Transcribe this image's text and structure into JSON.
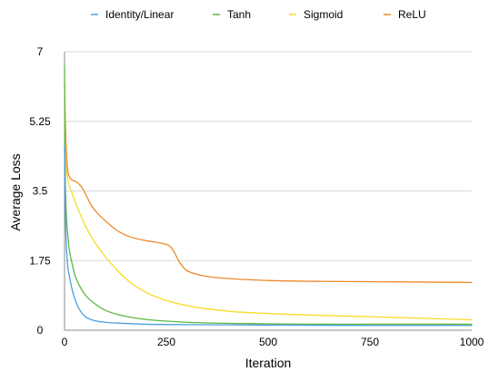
{
  "chart_data": {
    "type": "line",
    "title": "",
    "xlabel": "Iteration",
    "ylabel": "Average Loss",
    "xlim": [
      0,
      1000
    ],
    "ylim": [
      0,
      7
    ],
    "x_ticks": [
      0,
      250,
      500,
      750,
      1000
    ],
    "x_tick_labels": [
      "0",
      "250",
      "500",
      "750",
      "1000"
    ],
    "y_ticks": [
      0,
      1.75,
      3.5,
      5.25,
      7
    ],
    "y_tick_labels": [
      "0",
      "1.75",
      "3.5",
      "5.25",
      "7"
    ],
    "grid": "horizontal",
    "legend_position": "top",
    "series": [
      {
        "name": "Identity/Linear",
        "color": "#4a9fdc",
        "x": [
          0,
          1,
          3,
          5,
          8,
          12,
          18,
          25,
          35,
          50,
          70,
          100,
          150,
          200,
          300,
          500,
          750,
          1000
        ],
        "values": [
          4.6,
          3.9,
          2.6,
          2.0,
          1.6,
          1.35,
          1.05,
          0.8,
          0.55,
          0.35,
          0.25,
          0.2,
          0.17,
          0.15,
          0.14,
          0.13,
          0.12,
          0.12
        ]
      },
      {
        "name": "Tanh",
        "color": "#5cb843",
        "x": [
          0,
          1,
          3,
          5,
          8,
          12,
          18,
          25,
          35,
          50,
          70,
          100,
          150,
          200,
          300,
          500,
          750,
          1000
        ],
        "values": [
          6.65,
          4.5,
          3.3,
          2.8,
          2.4,
          2.0,
          1.7,
          1.4,
          1.15,
          0.9,
          0.7,
          0.5,
          0.35,
          0.27,
          0.2,
          0.16,
          0.15,
          0.15
        ]
      },
      {
        "name": "Sigmoid",
        "color": "#f7dc26",
        "x": [
          0,
          2,
          5,
          10,
          20,
          35,
          50,
          75,
          100,
          150,
          200,
          250,
          300,
          400,
          500,
          600,
          750,
          1000
        ],
        "values": [
          5.4,
          4.4,
          4.0,
          3.7,
          3.4,
          3.0,
          2.65,
          2.2,
          1.85,
          1.3,
          0.95,
          0.75,
          0.62,
          0.48,
          0.42,
          0.38,
          0.34,
          0.26
        ]
      },
      {
        "name": "ReLU",
        "color": "#ec8a2b",
        "x": [
          0,
          2,
          5,
          8,
          12,
          18,
          25,
          35,
          45,
          55,
          65,
          80,
          100,
          130,
          160,
          200,
          240,
          260,
          270,
          280,
          290,
          300,
          320,
          350,
          400,
          500,
          600,
          750,
          1000
        ],
        "values": [
          6.2,
          5.2,
          4.4,
          4.0,
          3.85,
          3.78,
          3.75,
          3.68,
          3.55,
          3.35,
          3.15,
          2.95,
          2.75,
          2.5,
          2.35,
          2.25,
          2.18,
          2.1,
          1.95,
          1.75,
          1.6,
          1.5,
          1.42,
          1.35,
          1.3,
          1.25,
          1.23,
          1.22,
          1.2
        ]
      }
    ]
  }
}
